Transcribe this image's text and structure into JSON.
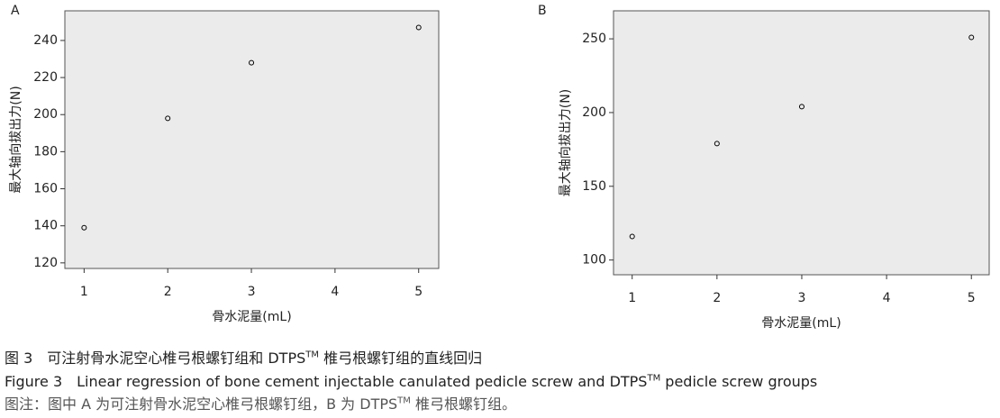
{
  "chart_data": [
    {
      "type": "scatter",
      "panel": "A",
      "x_label": "骨水泥量(mL)",
      "y_label": "最大轴向拔出力(N)",
      "x": [
        1,
        2,
        3,
        5
      ],
      "values": [
        139,
        198,
        228,
        247
      ],
      "color": "#000000",
      "xlim": [
        0.77,
        5.24
      ],
      "xticks": [
        1,
        2,
        3,
        4,
        5
      ],
      "ylim": [
        117,
        256
      ],
      "yticks": [
        120,
        140,
        160,
        180,
        200,
        220,
        240
      ]
    },
    {
      "type": "scatter",
      "panel": "B",
      "x_label": "骨水泥量(mL)",
      "y_label": "最大轴向拔出力(N)",
      "x": [
        1,
        2,
        3,
        5
      ],
      "values": [
        116,
        179,
        204,
        251
      ],
      "color": "#000000",
      "xlim": [
        0.78,
        5.21
      ],
      "xticks": [
        1,
        2,
        3,
        4,
        5
      ],
      "ylim": [
        90,
        269
      ],
      "yticks": [
        100,
        150,
        200,
        250
      ]
    }
  ],
  "captions": [
    {
      "before": "图 3　可注射骨水泥空心椎弓根螺钉组和 DTPS",
      "sup": "TM",
      "after": " 椎弓根螺钉组的直线回归"
    },
    {
      "before": "Figure 3　Linear regression of bone cement injectable canulated pedicle screw and DTPS",
      "sup": "TM",
      "after": " pedicle screw groups"
    },
    {
      "before": "图注：图中 A 为可注射骨水泥空心椎弓根螺钉组，B 为 DTPS",
      "sup": "TM",
      "after": " 椎弓根螺钉组。"
    }
  ]
}
